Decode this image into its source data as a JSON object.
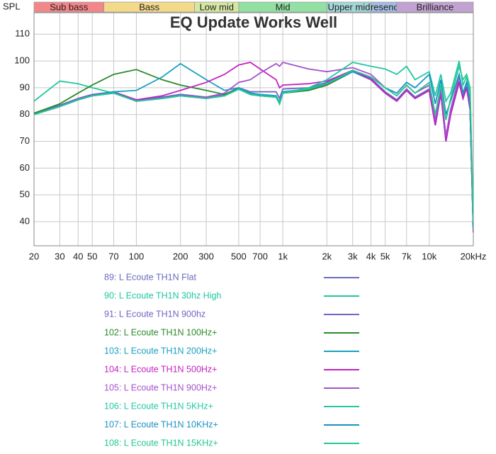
{
  "chart_data": {
    "type": "line",
    "title": "EQ Update Works Well",
    "ylabel": "SPL",
    "xscale": "log",
    "grid": true,
    "xlim": [
      20,
      20000
    ],
    "ylim": [
      31,
      118
    ],
    "xticks": [
      20,
      30,
      40,
      50,
      70,
      100,
      200,
      300,
      500,
      700,
      {
        "value": 1000,
        "label": "1k"
      },
      {
        "value": 2000,
        "label": "2k"
      },
      {
        "value": 3000,
        "label": "3k"
      },
      {
        "value": 4000,
        "label": "4k"
      },
      {
        "value": 5000,
        "label": "5k"
      },
      {
        "value": 7000,
        "label": "7k"
      },
      {
        "value": 10000,
        "label": "10k"
      },
      {
        "value": 20000,
        "label": "20kHz"
      }
    ],
    "yticks": [
      40,
      50,
      60,
      70,
      80,
      90,
      100,
      110
    ],
    "bands": [
      {
        "name": "Sub bass",
        "range": [
          20,
          60
        ],
        "color": "#f4868a"
      },
      {
        "name": "Bass",
        "range": [
          60,
          250
        ],
        "color": "#f5d98a"
      },
      {
        "name": "Low mid",
        "range": [
          250,
          500
        ],
        "color": "#d6e8a0"
      },
      {
        "name": "Mid",
        "range": [
          500,
          2000
        ],
        "color": "#92e0a2"
      },
      {
        "name": "Upper mid",
        "range": [
          2000,
          4000
        ],
        "color": "#a2d8d8"
      },
      {
        "name": "Presence",
        "range": [
          4000,
          6000
        ],
        "color": "#a4bce2"
      },
      {
        "name": "Brilliance",
        "range": [
          6000,
          20000
        ],
        "color": "#c2a2d2"
      }
    ],
    "x": [
      20,
      30,
      40,
      50,
      70,
      100,
      150,
      200,
      300,
      400,
      500,
      600,
      700,
      900,
      950,
      1000,
      1500,
      2000,
      3000,
      4000,
      5000,
      6000,
      7000,
      8000,
      10000,
      11000,
      12000,
      13000,
      14000,
      16000,
      17000,
      18000,
      19000,
      20000
    ],
    "series": [
      {
        "name": "89: L Ecoute TH1N Flat",
        "color": "#6a6ac2",
        "values": [
          80,
          83,
          85.5,
          87,
          88,
          85,
          86,
          87,
          86,
          87,
          89.5,
          87.5,
          87,
          86.5,
          84,
          88,
          89,
          91,
          96,
          93,
          88,
          85,
          89,
          86,
          89,
          76,
          88,
          70,
          80,
          92,
          86,
          90,
          82,
          36
        ]
      },
      {
        "name": "90: L Ecoute TH1N 30hz High",
        "color": "#1ec89c",
        "values": [
          85,
          92.5,
          91.5,
          90,
          88,
          85.5,
          86.5,
          87.5,
          86.5,
          87.5,
          90,
          88,
          87.5,
          87,
          84.5,
          88.5,
          89.5,
          91.5,
          96.5,
          93.5,
          88.5,
          85.5,
          89.5,
          86.5,
          89.5,
          76.5,
          88.5,
          70.5,
          80.5,
          92.5,
          86.5,
          90.5,
          82.5,
          37
        ]
      },
      {
        "name": "91: L Ecoute TH1N 900hz",
        "color": "#7464c4",
        "values": [
          80.5,
          83.5,
          86,
          87.5,
          88.5,
          85.5,
          86.5,
          87.5,
          86.5,
          87.5,
          90,
          88.5,
          88.5,
          88.5,
          86,
          89.5,
          90,
          92,
          96.5,
          93.5,
          88.5,
          85.5,
          89.5,
          86.5,
          89.5,
          76.5,
          88.5,
          70.5,
          80.5,
          92.5,
          86.5,
          90.5,
          82.5,
          38
        ]
      },
      {
        "name": "102: L Ecoute TH1N 100Hz+",
        "color": "#2a8a2a",
        "values": [
          80.5,
          84,
          88,
          91,
          95,
          96.8,
          93,
          91,
          89,
          87.5,
          89.5,
          87.5,
          87,
          86.5,
          84,
          88,
          89,
          91,
          96,
          93,
          88,
          85,
          89,
          86,
          89,
          76,
          88,
          70,
          80,
          92,
          86,
          90,
          82,
          36
        ]
      },
      {
        "name": "103: L Ecoute TH1N 200Hz+",
        "color": "#1aa0c2",
        "values": [
          80,
          83,
          85.5,
          87,
          88.5,
          89,
          94,
          99,
          93,
          89,
          90,
          88,
          87.5,
          87,
          84.5,
          88.5,
          89.5,
          91.5,
          96,
          93,
          88,
          85,
          89,
          86,
          89,
          76,
          88,
          70,
          80,
          92,
          86,
          90,
          82,
          37
        ]
      },
      {
        "name": "104: L Ecoute TH1N 500Hz+",
        "color": "#c222c2",
        "values": [
          80,
          83,
          85.5,
          87,
          88,
          85.5,
          87,
          89,
          92,
          95,
          98.5,
          99.5,
          97,
          93,
          90,
          91,
          91.5,
          92.5,
          96.5,
          93,
          88,
          85,
          89,
          86,
          89,
          76,
          88,
          70,
          80,
          92,
          86,
          90,
          82,
          36
        ]
      },
      {
        "name": "105: L Ecoute TH1N 900Hz+",
        "color": "#a452ca",
        "values": [
          80,
          83,
          85.5,
          87,
          88,
          85,
          86,
          87,
          86.5,
          88,
          92,
          93,
          95.5,
          99,
          98,
          99.5,
          97,
          96,
          97.5,
          95,
          90,
          87,
          91,
          88,
          91,
          78,
          90,
          72,
          82,
          94,
          88,
          92,
          84,
          38
        ]
      },
      {
        "name": "106: L Ecoute TH1N 5KHz+",
        "color": "#22c8a2",
        "values": [
          80,
          83,
          85.5,
          87,
          88,
          85,
          86,
          87,
          86,
          87,
          89.5,
          87.5,
          87,
          86.5,
          84,
          88,
          90,
          93,
          99.5,
          98,
          97,
          95,
          98,
          93,
          96,
          87,
          95,
          85,
          88,
          100,
          91,
          94,
          88,
          38
        ]
      },
      {
        "name": "107: L Ecoute TH1N 10KHz+",
        "color": "#1a92c2",
        "values": [
          80,
          83,
          85.5,
          87,
          88,
          85,
          86,
          87,
          86,
          87,
          89.5,
          87.5,
          87,
          86.5,
          84,
          88,
          89.5,
          91.5,
          96.5,
          94,
          90,
          88,
          92,
          90,
          95,
          84,
          93,
          80,
          85,
          95,
          88,
          92,
          85,
          37
        ]
      },
      {
        "name": "108: L Ecoute TH1N 15KHz+",
        "color": "#22c892",
        "values": [
          80,
          83,
          85.5,
          87,
          88,
          85,
          86,
          87,
          86,
          87,
          89.5,
          87.5,
          87,
          86.5,
          84,
          88,
          89.5,
          91.5,
          96.5,
          94,
          90,
          87,
          91,
          88,
          92,
          80,
          91,
          78,
          86,
          98,
          93,
          95,
          90,
          40
        ]
      }
    ]
  }
}
